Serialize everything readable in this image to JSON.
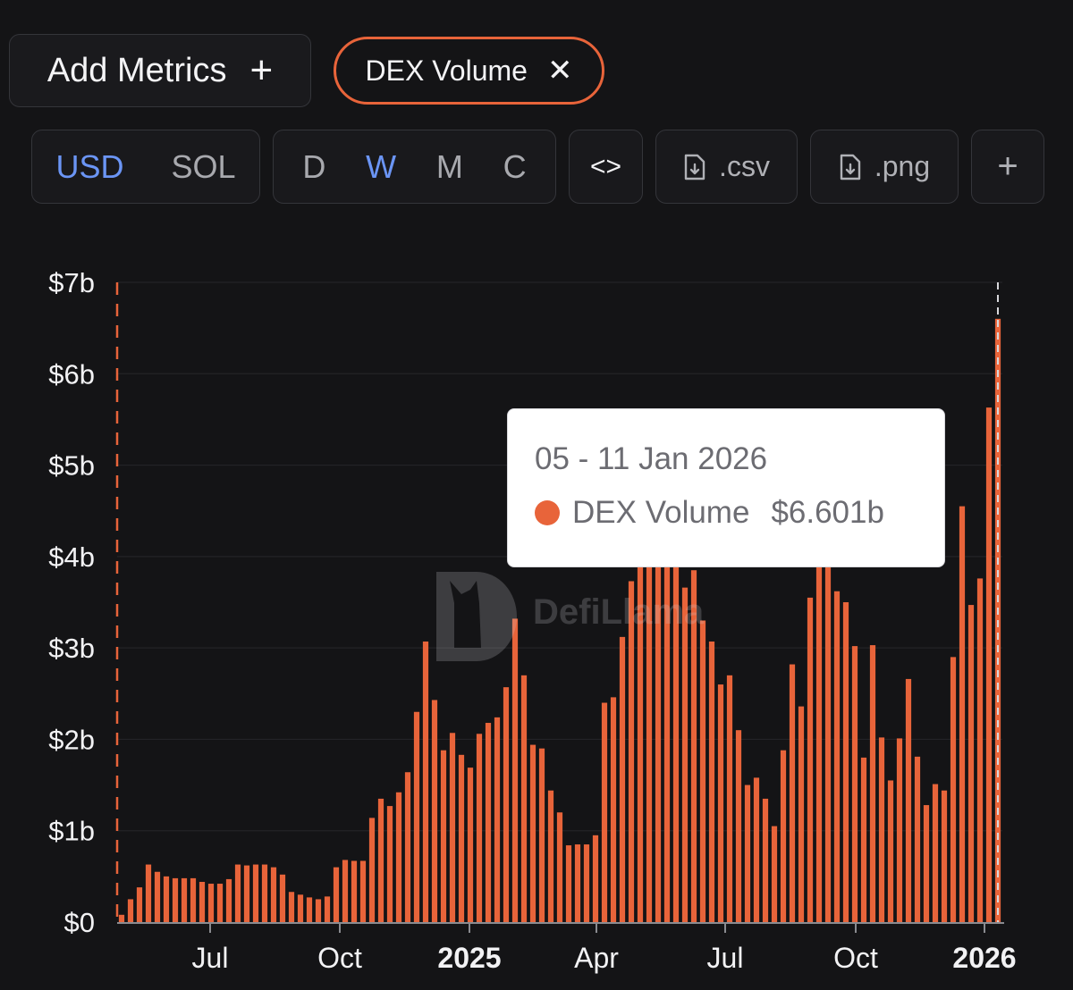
{
  "toolbar": {
    "add_metrics_label": "Add Metrics",
    "metric_chip_label": "DEX Volume",
    "currency_options": [
      "USD",
      "SOL"
    ],
    "currency_selected": "USD",
    "interval_options": [
      "D",
      "W",
      "M",
      "C"
    ],
    "interval_selected": "W",
    "embed_label": "<>",
    "csv_label": ".csv",
    "png_label": ".png",
    "more_label": "+"
  },
  "watermark": "DefiLlama",
  "tooltip": {
    "date": "05 - 11 Jan 2026",
    "series": "DEX Volume",
    "value": "$6.601b"
  },
  "colors": {
    "series": "#e8643a",
    "accent": "#6b95f5",
    "background": "#141416"
  },
  "chart_data": {
    "type": "bar",
    "series": [
      {
        "name": "DEX Volume",
        "unit": "USD billions",
        "values": [
          0.08,
          0.25,
          0.38,
          0.63,
          0.55,
          0.5,
          0.48,
          0.48,
          0.48,
          0.44,
          0.42,
          0.42,
          0.47,
          0.63,
          0.62,
          0.63,
          0.63,
          0.6,
          0.52,
          0.33,
          0.3,
          0.27,
          0.25,
          0.28,
          0.6,
          0.68,
          0.67,
          0.67,
          1.14,
          1.35,
          1.27,
          1.42,
          1.64,
          2.3,
          3.07,
          2.43,
          1.88,
          2.07,
          1.83,
          1.69,
          2.06,
          2.18,
          2.24,
          2.57,
          3.32,
          2.7,
          1.94,
          1.9,
          1.44,
          1.2,
          0.84,
          0.85,
          0.85,
          0.95,
          2.4,
          2.46,
          3.12,
          3.73,
          4.35,
          5.4,
          5.1,
          4.9,
          4.5,
          3.66,
          3.85,
          3.3,
          3.07,
          2.6,
          2.7,
          2.1,
          1.5,
          1.58,
          1.35,
          1.05,
          1.88,
          2.82,
          2.36,
          3.55,
          4.37,
          3.92,
          3.62,
          3.5,
          3.02,
          1.8,
          3.03,
          2.02,
          1.55,
          2.01,
          2.66,
          1.81,
          1.28,
          1.51,
          1.44,
          2.9,
          4.55,
          3.47,
          3.76,
          5.63,
          6.601
        ]
      }
    ],
    "x_tick_labels": [
      "Jul",
      "Oct",
      "2025",
      "Apr",
      "Jul",
      "Oct",
      "2026"
    ],
    "y_tick_labels": [
      "$0",
      "$1b",
      "$2b",
      "$3b",
      "$4b",
      "$5b",
      "$6b",
      "$7b"
    ],
    "ylim": [
      0,
      7
    ],
    "highlighted_point": {
      "date": "05 - 11 Jan 2026",
      "value": 6.601
    },
    "grid": true
  }
}
